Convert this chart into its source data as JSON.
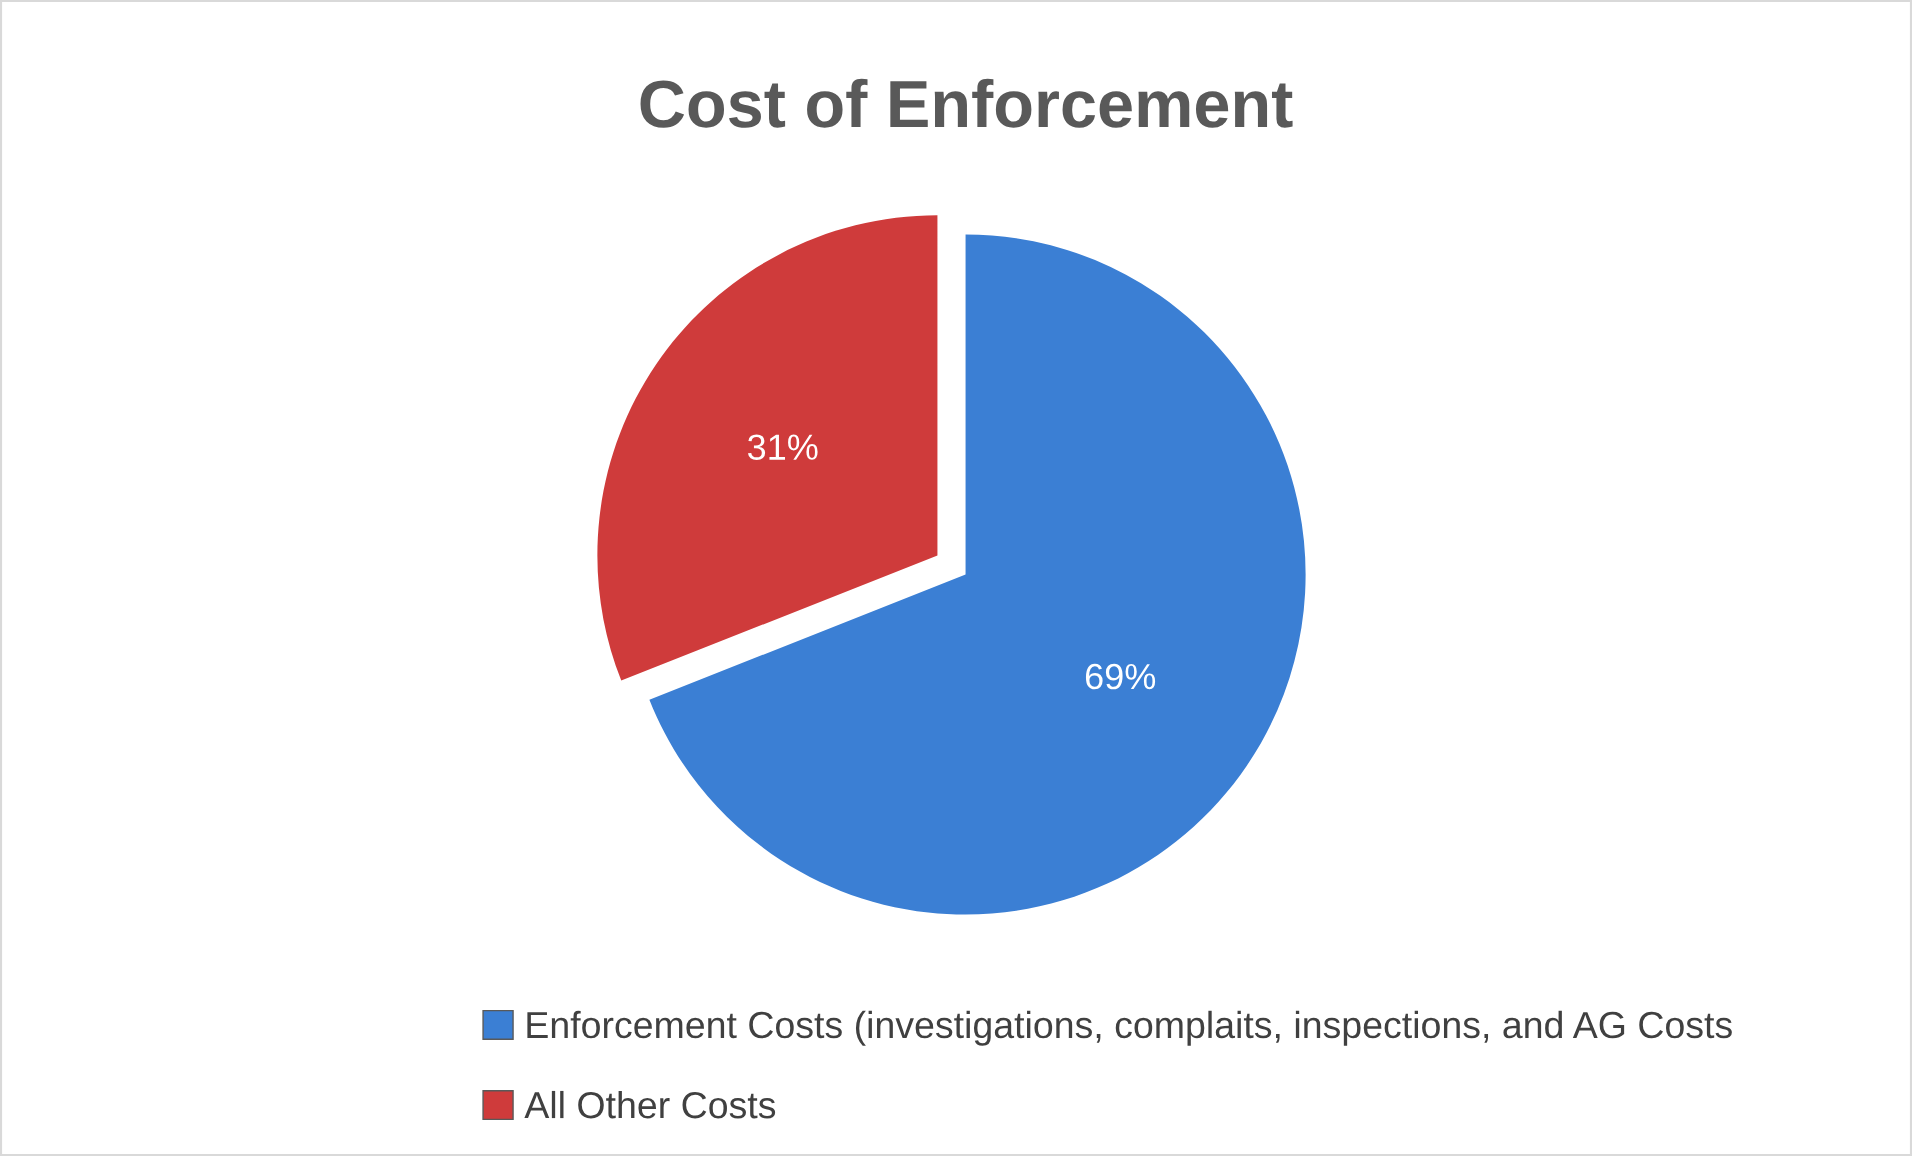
{
  "chart_data": {
    "type": "pie",
    "title": "Cost of Enforcement",
    "categories": [
      "Enforcement Costs (investigations, complaits, inspections, and AG Costs",
      "All Other Costs"
    ],
    "values": [
      69,
      31
    ],
    "colors": [
      "#3b7fd4",
      "#cf3b3b"
    ],
    "value_labels": [
      "69%",
      "31%"
    ],
    "legend": "bottom"
  }
}
